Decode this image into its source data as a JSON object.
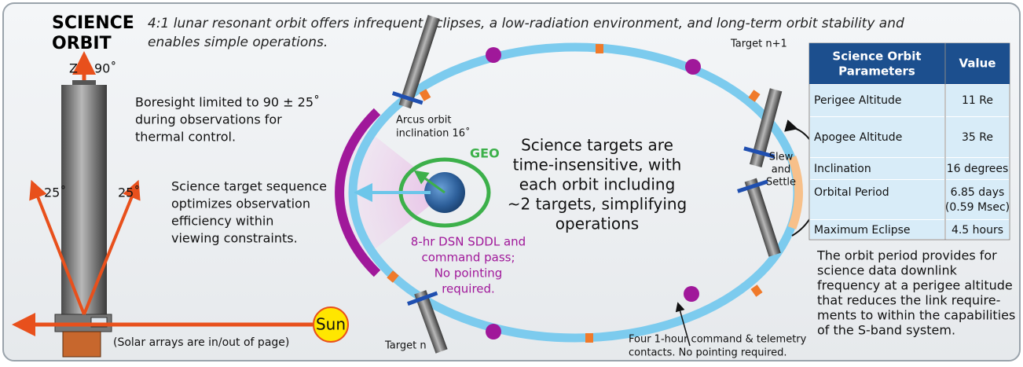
{
  "header": {
    "title": [
      "SCIENCE",
      "ORBIT"
    ],
    "caption": [
      "4:1 lunar resonant orbit offers infrequent eclipses, a low-radiation environment, and long-term orbit stability and",
      "enables simple operations."
    ]
  },
  "left": {
    "z_label": "Z",
    "up_angle": "90˚",
    "left_angle": "25˚",
    "right_angle": "25˚",
    "boresight": [
      "Boresight limited to 90 ± 25˚",
      "during observations for",
      "thermal control."
    ],
    "sequence": [
      "Science target sequence",
      "optimizes observation",
      "efficiency within",
      "viewing constraints."
    ],
    "solar_arrays": "(Solar arrays are in/out of page)",
    "sun": "Sun"
  },
  "orbit": {
    "inclination": [
      "Arcus orbit",
      "inclination 16˚"
    ],
    "geo": "GEO",
    "dsn": [
      "8-hr DSN SDDL and",
      "command pass;",
      "No pointing",
      "required."
    ],
    "targets_note": [
      "Science targets are",
      "time-insensitive, with",
      "each orbit including",
      "~2 targets, simplifying",
      "operations"
    ],
    "target_n1": "Target n+1",
    "target_n": "Target n",
    "slew": [
      "Slew",
      "and",
      "Settle"
    ],
    "contacts": [
      "Four 1-hour command & telemetry",
      "contacts. No pointing required."
    ]
  },
  "table": {
    "header": [
      [
        "Science Orbit",
        "Parameters"
      ],
      "Value"
    ],
    "rows": [
      [
        "Perigee Altitude",
        "11 Re"
      ],
      [
        "Apogee Altitude",
        "35 Re"
      ],
      [
        "Inclination",
        "16 degrees"
      ],
      [
        "Orbital Period",
        [
          "6.85 days",
          "(0.59 Msec)"
        ]
      ],
      [
        "Maximum Eclipse",
        "4.5 hours"
      ]
    ]
  },
  "note": [
    "The orbit period provides for",
    "science data downlink",
    "frequency at a perigee altitude",
    "that reduces the link require-",
    "ments to within the capabilities",
    "of the  S-band system."
  ]
}
